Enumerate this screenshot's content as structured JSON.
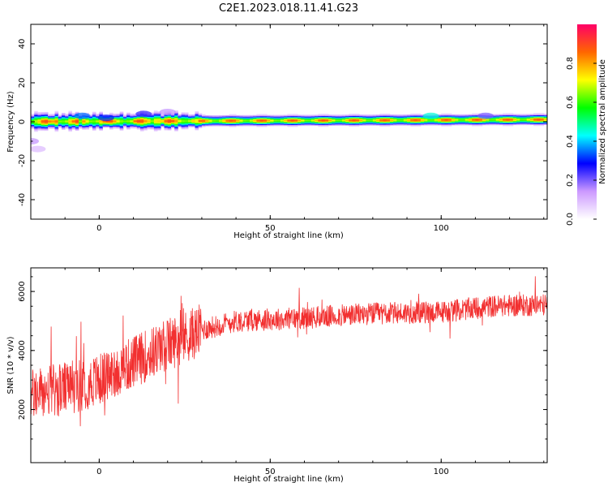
{
  "figure": {
    "title": "C2E1.2023.018.11.41.G23"
  },
  "chart_data": [
    {
      "type": "heatmap",
      "xlabel": "Height of straight line (km)",
      "ylabel": "Frequency (Hz)",
      "xlim": [
        -20,
        131
      ],
      "ylim": [
        -50,
        50
      ],
      "x_ticks": [
        0,
        50,
        100
      ],
      "y_ticks": [
        40,
        20,
        0,
        -20,
        -40
      ],
      "colorbar": {
        "label": "Normalized spectral amplitude",
        "range": [
          0,
          1
        ],
        "ticks": [
          "0.0",
          "0.2",
          "0.4",
          "0.6",
          "0.8"
        ],
        "colors": [
          "#ffffff",
          "#cc99ff",
          "#0000ff",
          "#00ffff",
          "#00ff00",
          "#ffff00",
          "#ff6600",
          "#ff0066"
        ]
      },
      "band": {
        "center_hz_start": 0,
        "center_hz_end": 1,
        "core_amplitude": 0.9,
        "blobs": [
          {
            "x": -20,
            "f": -10,
            "amp": 0.15
          },
          {
            "x": -18,
            "f": -14,
            "amp": 0.1
          },
          {
            "x": -5,
            "f": 3,
            "amp": 0.35
          },
          {
            "x": 2,
            "f": 2,
            "amp": 0.3
          },
          {
            "x": 13,
            "f": 4,
            "amp": 0.25
          },
          {
            "x": 20,
            "f": 5,
            "amp": 0.15
          },
          {
            "x": 97,
            "f": 3,
            "amp": 0.45
          },
          {
            "x": 113,
            "f": 3,
            "amp": 0.2
          }
        ]
      },
      "grid": false
    },
    {
      "type": "line",
      "xlabel": "Height of straight line (km)",
      "ylabel": "SNR (10 * v/v)",
      "xlim": [
        -20,
        131
      ],
      "ylim": [
        200,
        6800
      ],
      "x_ticks": [
        0,
        50,
        100
      ],
      "y_ticks": [
        6000,
        4000,
        2000
      ],
      "color": "#f23030",
      "trend": [
        {
          "x": -20,
          "y": 2500
        },
        {
          "x": -10,
          "y": 2700
        },
        {
          "x": 0,
          "y": 3000
        },
        {
          "x": 10,
          "y": 3600
        },
        {
          "x": 20,
          "y": 4200
        },
        {
          "x": 30,
          "y": 4700
        },
        {
          "x": 40,
          "y": 5000
        },
        {
          "x": 50,
          "y": 5050
        },
        {
          "x": 60,
          "y": 5100
        },
        {
          "x": 80,
          "y": 5250
        },
        {
          "x": 100,
          "y": 5300
        },
        {
          "x": 115,
          "y": 5500
        },
        {
          "x": 131,
          "y": 5550
        }
      ],
      "grid": false
    }
  ]
}
